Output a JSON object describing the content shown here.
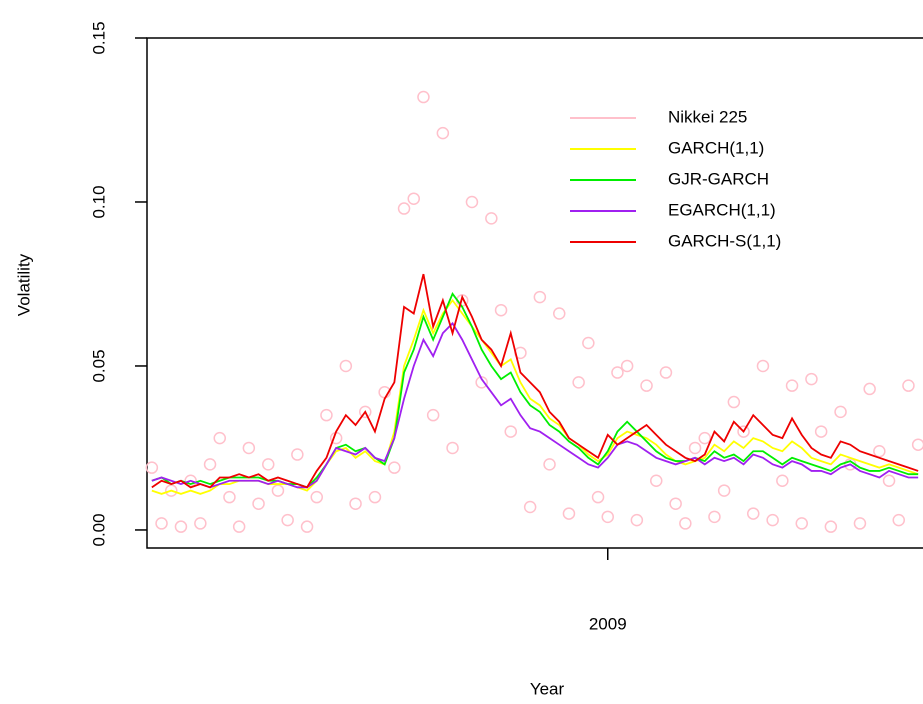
{
  "chart_data": {
    "type": "line",
    "x_label": "Year",
    "y_label": "Volatility",
    "xlim": [
      2008.525,
      2009.325
    ],
    "xticks": [
      {
        "value": 2009,
        "label": "2009"
      }
    ],
    "ylim": [
      -0.0055,
      0.15
    ],
    "yticks": [
      {
        "value": 0,
        "label": "0.00"
      },
      {
        "value": 0.05,
        "label": "0.05"
      },
      {
        "value": 0.1,
        "label": "0.10"
      },
      {
        "value": 0.15,
        "label": "0.15"
      }
    ],
    "legend": "top-right",
    "grid": false,
    "x": [
      2008.53,
      2008.54,
      2008.55,
      2008.56,
      2008.57,
      2008.58,
      2008.59,
      2008.6,
      2008.61,
      2008.62,
      2008.63,
      2008.64,
      2008.65,
      2008.66,
      2008.67,
      2008.68,
      2008.69,
      2008.7,
      2008.71,
      2008.72,
      2008.73,
      2008.74,
      2008.75,
      2008.76,
      2008.77,
      2008.78,
      2008.79,
      2008.8,
      2008.81,
      2008.82,
      2008.83,
      2008.84,
      2008.85,
      2008.86,
      2008.87,
      2008.88,
      2008.89,
      2008.9,
      2008.91,
      2008.92,
      2008.93,
      2008.94,
      2008.95,
      2008.96,
      2008.97,
      2008.98,
      2008.99,
      2009,
      2009.01,
      2009.02,
      2009.03,
      2009.04,
      2009.05,
      2009.06,
      2009.07,
      2009.08,
      2009.09,
      2009.1,
      2009.11,
      2009.12,
      2009.13,
      2009.14,
      2009.15,
      2009.16,
      2009.17,
      2009.18,
      2009.19,
      2009.2,
      2009.21,
      2009.22,
      2009.23,
      2009.24,
      2009.25,
      2009.26,
      2009.27,
      2009.28,
      2009.29,
      2009.3,
      2009.31,
      2009.32
    ],
    "series": [
      {
        "name": "Nikkei 225",
        "color": "#ffc0cb",
        "mode": "markers",
        "values": [
          0.019,
          0.002,
          0.012,
          0.001,
          0.015,
          0.002,
          0.02,
          0.028,
          0.01,
          0.001,
          0.025,
          0.008,
          0.02,
          0.012,
          0.003,
          0.023,
          0.001,
          0.01,
          0.035,
          0.028,
          0.05,
          0.008,
          0.036,
          0.01,
          0.042,
          0.019,
          0.098,
          0.101,
          0.132,
          0.035,
          0.121,
          0.025,
          0.07,
          0.1,
          0.045,
          0.095,
          0.067,
          0.03,
          0.054,
          0.007,
          0.071,
          0.02,
          0.066,
          0.005,
          0.045,
          0.057,
          0.01,
          0.004,
          0.048,
          0.05,
          0.003,
          0.044,
          0.015,
          0.048,
          0.008,
          0.002,
          0.025,
          0.028,
          0.004,
          0.012,
          0.039,
          0.03,
          0.005,
          0.05,
          0.003,
          0.015,
          0.044,
          0.002,
          0.046,
          0.03,
          0.001,
          0.036,
          0.02,
          0.002,
          0.043,
          0.024,
          0.015,
          0.003,
          0.044,
          0.026
        ]
      },
      {
        "name": "GARCH(1,1)",
        "color": "#ffff00",
        "mode": "lines",
        "values": [
          0.012,
          0.011,
          0.012,
          0.011,
          0.012,
          0.011,
          0.012,
          0.014,
          0.014,
          0.015,
          0.015,
          0.015,
          0.014,
          0.014,
          0.014,
          0.013,
          0.012,
          0.015,
          0.02,
          0.024,
          0.025,
          0.022,
          0.024,
          0.021,
          0.02,
          0.03,
          0.05,
          0.058,
          0.067,
          0.06,
          0.066,
          0.07,
          0.066,
          0.062,
          0.058,
          0.054,
          0.05,
          0.052,
          0.045,
          0.04,
          0.038,
          0.034,
          0.032,
          0.028,
          0.026,
          0.023,
          0.021,
          0.023,
          0.028,
          0.03,
          0.029,
          0.028,
          0.026,
          0.023,
          0.021,
          0.02,
          0.021,
          0.022,
          0.026,
          0.024,
          0.027,
          0.025,
          0.028,
          0.027,
          0.025,
          0.024,
          0.027,
          0.025,
          0.022,
          0.021,
          0.02,
          0.023,
          0.022,
          0.021,
          0.02,
          0.019,
          0.02,
          0.019,
          0.018,
          0.017
        ]
      },
      {
        "name": "GJR-GARCH",
        "color": "#00ee00",
        "mode": "lines",
        "values": [
          0.015,
          0.016,
          0.014,
          0.015,
          0.014,
          0.015,
          0.014,
          0.015,
          0.016,
          0.016,
          0.016,
          0.016,
          0.015,
          0.015,
          0.014,
          0.014,
          0.013,
          0.016,
          0.02,
          0.025,
          0.026,
          0.024,
          0.025,
          0.022,
          0.02,
          0.028,
          0.048,
          0.055,
          0.065,
          0.058,
          0.065,
          0.072,
          0.068,
          0.062,
          0.055,
          0.05,
          0.046,
          0.048,
          0.042,
          0.038,
          0.036,
          0.032,
          0.03,
          0.027,
          0.025,
          0.022,
          0.02,
          0.024,
          0.03,
          0.033,
          0.03,
          0.027,
          0.024,
          0.022,
          0.021,
          0.021,
          0.022,
          0.021,
          0.024,
          0.022,
          0.023,
          0.021,
          0.024,
          0.024,
          0.022,
          0.02,
          0.022,
          0.021,
          0.02,
          0.019,
          0.018,
          0.02,
          0.021,
          0.019,
          0.018,
          0.018,
          0.019,
          0.018,
          0.017,
          0.017
        ]
      },
      {
        "name": "EGARCH(1,1)",
        "color": "#a020f0",
        "mode": "lines",
        "values": [
          0.015,
          0.016,
          0.015,
          0.014,
          0.015,
          0.014,
          0.013,
          0.014,
          0.015,
          0.015,
          0.015,
          0.015,
          0.014,
          0.015,
          0.014,
          0.013,
          0.013,
          0.015,
          0.02,
          0.025,
          0.024,
          0.023,
          0.025,
          0.022,
          0.021,
          0.028,
          0.04,
          0.05,
          0.058,
          0.053,
          0.06,
          0.063,
          0.058,
          0.052,
          0.046,
          0.042,
          0.038,
          0.04,
          0.035,
          0.031,
          0.03,
          0.028,
          0.026,
          0.024,
          0.022,
          0.02,
          0.019,
          0.022,
          0.026,
          0.027,
          0.026,
          0.024,
          0.022,
          0.021,
          0.02,
          0.021,
          0.022,
          0.02,
          0.022,
          0.021,
          0.022,
          0.02,
          0.023,
          0.022,
          0.02,
          0.019,
          0.021,
          0.02,
          0.018,
          0.018,
          0.017,
          0.019,
          0.02,
          0.018,
          0.017,
          0.016,
          0.018,
          0.017,
          0.016,
          0.016
        ]
      },
      {
        "name": "GARCH-S(1,1)",
        "color": "#ee0000",
        "mode": "lines",
        "values": [
          0.013,
          0.015,
          0.014,
          0.015,
          0.013,
          0.014,
          0.013,
          0.016,
          0.016,
          0.017,
          0.016,
          0.017,
          0.015,
          0.016,
          0.015,
          0.014,
          0.013,
          0.018,
          0.022,
          0.03,
          0.035,
          0.032,
          0.036,
          0.03,
          0.04,
          0.045,
          0.068,
          0.066,
          0.078,
          0.062,
          0.07,
          0.06,
          0.071,
          0.065,
          0.058,
          0.055,
          0.05,
          0.06,
          0.048,
          0.045,
          0.042,
          0.036,
          0.033,
          0.028,
          0.026,
          0.024,
          0.022,
          0.029,
          0.026,
          0.028,
          0.03,
          0.032,
          0.029,
          0.026,
          0.024,
          0.022,
          0.021,
          0.023,
          0.03,
          0.027,
          0.033,
          0.03,
          0.035,
          0.032,
          0.029,
          0.028,
          0.034,
          0.029,
          0.025,
          0.023,
          0.022,
          0.027,
          0.026,
          0.024,
          0.023,
          0.022,
          0.021,
          0.02,
          0.019,
          0.018
        ]
      }
    ]
  }
}
